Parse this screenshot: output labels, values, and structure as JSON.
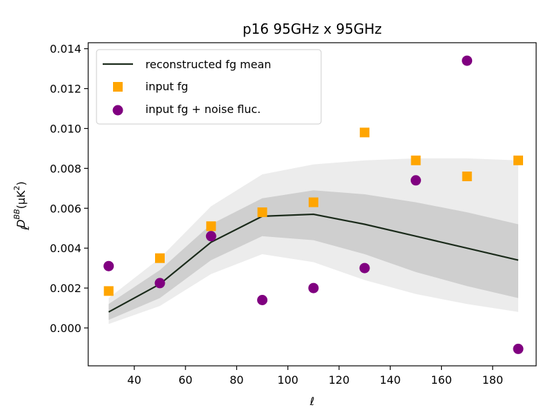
{
  "chart_data": {
    "type": "line",
    "title": "p16 95GHz x 95GHz",
    "xlabel": "ℓ",
    "ylabel": {
      "base": "D",
      "sub": "ℓ",
      "sup": "BB",
      "unit_open": "(μK",
      "unit_sup": "2",
      "unit_close": ")"
    },
    "xlim": [
      22,
      197
    ],
    "ylim": [
      -0.0019,
      0.0143
    ],
    "x_ticks": [
      40,
      60,
      80,
      100,
      120,
      140,
      160,
      180
    ],
    "y_ticks": [
      0.0,
      0.002,
      0.004,
      0.006,
      0.008,
      0.01,
      0.012,
      0.014
    ],
    "y_tick_labels": [
      "0.000",
      "0.002",
      "0.004",
      "0.006",
      "0.008",
      "0.010",
      "0.012",
      "0.014"
    ],
    "x": [
      30,
      50,
      70,
      90,
      110,
      130,
      150,
      170,
      190
    ],
    "mean_line": {
      "name": "reconstructed fg mean",
      "color": "#1a2a1a",
      "values": [
        0.0008,
        0.0022,
        0.0043,
        0.0056,
        0.0057,
        0.0052,
        0.0046,
        0.004,
        0.0034
      ]
    },
    "band_1sigma": {
      "color": "#cfcfcf",
      "lower": [
        0.0004,
        0.0015,
        0.0034,
        0.0046,
        0.0044,
        0.0037,
        0.0028,
        0.0021,
        0.0015
      ],
      "upper": [
        0.0012,
        0.0029,
        0.0052,
        0.0065,
        0.0069,
        0.0067,
        0.0063,
        0.0058,
        0.0052
      ]
    },
    "band_2sigma": {
      "color": "#ececec",
      "lower": [
        0.0002,
        0.0011,
        0.0027,
        0.0037,
        0.0033,
        0.0024,
        0.0017,
        0.0012,
        0.0008
      ],
      "upper": [
        0.0015,
        0.0035,
        0.0061,
        0.0077,
        0.0082,
        0.0084,
        0.0085,
        0.0085,
        0.0084
      ]
    },
    "series": [
      {
        "name": "input fg",
        "marker": "square",
        "color": "#FFA500",
        "values": [
          0.00185,
          0.0035,
          0.0051,
          0.0058,
          0.0063,
          0.0098,
          0.0084,
          0.0076,
          0.0084
        ]
      },
      {
        "name": "input fg + noise fluc.",
        "marker": "circle",
        "color": "#800080",
        "values": [
          0.0031,
          0.00225,
          0.0046,
          0.0014,
          0.002,
          0.003,
          0.0074,
          0.0134,
          -0.00105
        ]
      }
    ],
    "legend": {
      "position": "top-left",
      "entries": [
        "reconstructed fg mean",
        "input fg",
        "input fg + noise fluc."
      ]
    },
    "grid": false
  }
}
